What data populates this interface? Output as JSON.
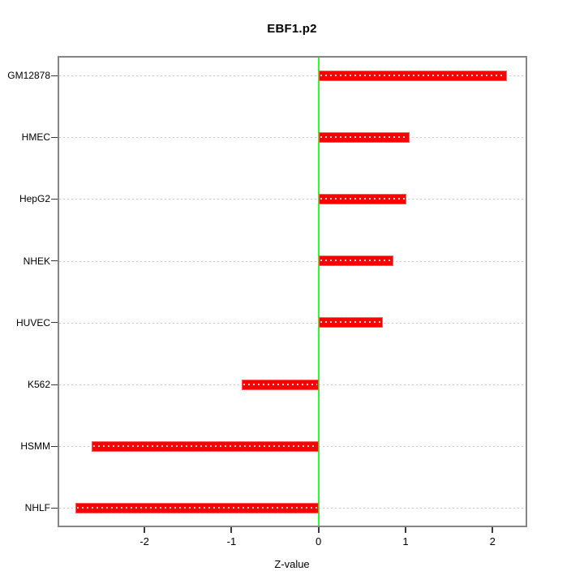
{
  "chart_data": {
    "type": "bar",
    "orientation": "horizontal",
    "title": "EBF1.p2",
    "xlabel": "Z-value",
    "ylabel": "",
    "categories": [
      "GM12878",
      "HMEC",
      "HepG2",
      "NHEK",
      "HUVEC",
      "K562",
      "HSMM",
      "NHLF"
    ],
    "values": [
      2.17,
      1.05,
      1.01,
      0.86,
      0.74,
      -0.88,
      -2.61,
      -2.79
    ],
    "xlim": [
      -2.98,
      2.38
    ],
    "xticks": [
      -2,
      -1,
      0,
      1,
      2
    ],
    "xtick_labels": [
      "-2",
      "-1",
      "0",
      "1",
      "2"
    ],
    "grid": "dotted horizontal line per category",
    "legend": "none",
    "reference_line_x": 0,
    "colors": {
      "bar": "#fb0000",
      "bar_dot_pattern": "#ffe6e6",
      "zero_line": "#2dfd2d",
      "gridline": "#c9c9c9",
      "panel_border": "#858585",
      "tick": "#3a3a3a",
      "text": "#000000",
      "background": "#ffffff"
    }
  }
}
